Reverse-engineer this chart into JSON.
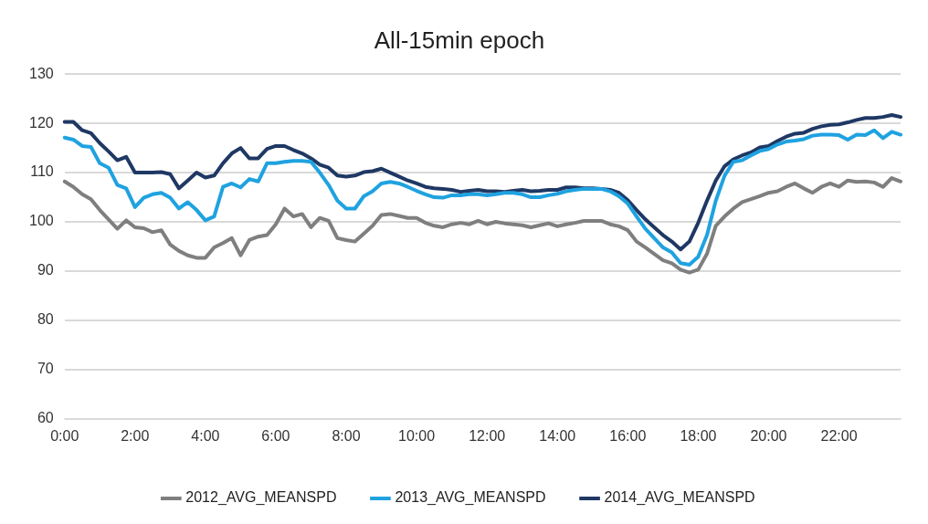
{
  "chart_data": {
    "type": "line",
    "title": "All-15min epoch",
    "categories": [
      "0:00",
      null,
      null,
      null,
      null,
      null,
      null,
      null,
      "2:00",
      null,
      null,
      null,
      null,
      null,
      null,
      null,
      "4:00",
      null,
      null,
      null,
      null,
      null,
      null,
      null,
      "6:00",
      null,
      null,
      null,
      null,
      null,
      null,
      null,
      "8:00",
      null,
      null,
      null,
      null,
      null,
      null,
      null,
      "10:00",
      null,
      null,
      null,
      null,
      null,
      null,
      null,
      "12:00",
      null,
      null,
      null,
      null,
      null,
      null,
      null,
      "14:00",
      null,
      null,
      null,
      null,
      null,
      null,
      null,
      "16:00",
      null,
      null,
      null,
      null,
      null,
      null,
      null,
      "18:00",
      null,
      null,
      null,
      null,
      null,
      null,
      null,
      "20:00",
      null,
      null,
      null,
      null,
      null,
      null,
      null,
      "22:00",
      null,
      null,
      null,
      null,
      null,
      null,
      null
    ],
    "series": [
      {
        "name": "2012_AVG_MEANSPD",
        "color": "#7f7f7f",
        "values": [
          108.2,
          107.1,
          105.6,
          104.6,
          102.4,
          100.5,
          98.6,
          100.3,
          98.9,
          98.7,
          97.9,
          98.3,
          95.4,
          94.1,
          93.2,
          92.7,
          92.7,
          94.8,
          95.7,
          96.7,
          93.2,
          96.3,
          97.0,
          97.3,
          99.5,
          102.7,
          101.1,
          101.6,
          98.9,
          100.8,
          100.2,
          96.7,
          96.3,
          96.0,
          97.6,
          99.2,
          101.4,
          101.6,
          101.2,
          100.8,
          100.8,
          99.8,
          99.2,
          98.9,
          99.5,
          99.8,
          99.5,
          100.2,
          99.5,
          100.0,
          99.7,
          99.5,
          99.3,
          98.9,
          99.3,
          99.7,
          99.1,
          99.5,
          99.8,
          100.2,
          100.2,
          100.2,
          99.5,
          99.1,
          98.3,
          96.0,
          94.8,
          93.5,
          92.2,
          91.6,
          90.3,
          89.7,
          90.3,
          93.5,
          99.2,
          101.1,
          102.7,
          104.0,
          104.6,
          105.2,
          105.9,
          106.2,
          107.1,
          107.8,
          106.8,
          105.9,
          107.1,
          107.8,
          107.1,
          108.4,
          108.1,
          108.2,
          108.0,
          107.1,
          108.9,
          108.2
        ]
      },
      {
        "name": "2013_AVG_MEANSPD",
        "color": "#1fa2e0",
        "values": [
          117.1,
          116.7,
          115.4,
          115.2,
          111.9,
          111.0,
          107.5,
          106.8,
          103.0,
          104.9,
          105.6,
          105.9,
          104.9,
          102.7,
          104.0,
          102.4,
          100.3,
          101.1,
          107.1,
          107.8,
          107.0,
          108.7,
          108.2,
          111.9,
          111.9,
          112.2,
          112.4,
          112.4,
          112.2,
          110.0,
          107.5,
          104.3,
          102.7,
          102.7,
          105.2,
          106.2,
          107.8,
          108.1,
          107.8,
          107.1,
          106.3,
          105.6,
          105.0,
          104.9,
          105.4,
          105.4,
          105.6,
          105.6,
          105.4,
          105.6,
          105.9,
          105.9,
          105.6,
          105.0,
          105.0,
          105.4,
          105.7,
          106.2,
          106.5,
          106.7,
          106.7,
          106.7,
          106.2,
          105.2,
          103.7,
          101.1,
          98.6,
          96.7,
          94.8,
          93.8,
          91.6,
          91.3,
          92.9,
          97.3,
          104.3,
          109.4,
          112.2,
          112.5,
          113.5,
          114.4,
          114.8,
          115.7,
          116.3,
          116.5,
          116.8,
          117.5,
          117.7,
          117.7,
          117.6,
          116.7,
          117.7,
          117.6,
          118.6,
          117.0,
          118.3,
          117.7
        ]
      },
      {
        "name": "2014_AVG_MEANSPD",
        "color": "#1f3864",
        "values": [
          120.3,
          120.3,
          118.6,
          118.0,
          116.0,
          114.3,
          112.5,
          113.2,
          110.0,
          110.0,
          110.0,
          110.1,
          109.7,
          106.8,
          108.4,
          110.0,
          109.0,
          109.4,
          111.9,
          113.9,
          115.0,
          112.9,
          112.9,
          114.8,
          115.4,
          115.4,
          114.6,
          113.9,
          112.9,
          111.6,
          111.0,
          109.4,
          109.2,
          109.4,
          110.1,
          110.3,
          110.8,
          110.0,
          109.2,
          108.4,
          107.8,
          107.1,
          106.8,
          106.7,
          106.5,
          106.1,
          106.3,
          106.5,
          106.2,
          106.2,
          106.1,
          106.3,
          106.5,
          106.2,
          106.3,
          106.5,
          106.5,
          107.0,
          107.0,
          106.8,
          106.8,
          106.7,
          106.5,
          105.9,
          104.4,
          102.4,
          100.5,
          98.9,
          97.3,
          96.0,
          94.4,
          96.0,
          99.8,
          104.3,
          108.4,
          111.3,
          112.7,
          113.5,
          114.1,
          115.1,
          115.4,
          116.4,
          117.3,
          117.9,
          118.1,
          118.9,
          119.4,
          119.7,
          119.8,
          120.2,
          120.7,
          121.1,
          121.1,
          121.3,
          121.7,
          121.3
        ]
      }
    ],
    "ylim": [
      60,
      130
    ],
    "yticks": [
      60,
      70,
      80,
      90,
      100,
      110,
      120,
      130
    ],
    "grid": "y",
    "legend": "bottom",
    "marker": "none",
    "line_style": "solid"
  }
}
